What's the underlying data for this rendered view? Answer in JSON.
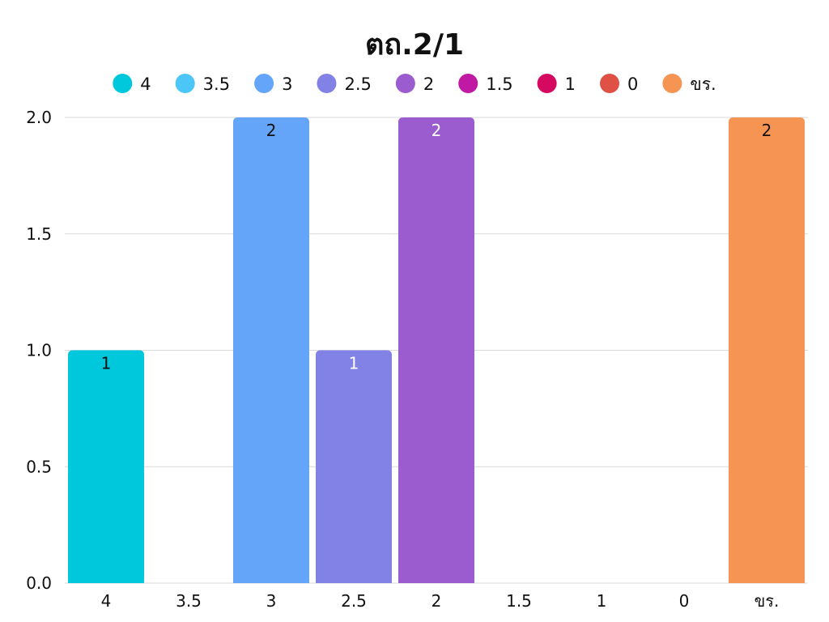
{
  "chart_data": {
    "type": "bar",
    "title": "ตถ.2/1",
    "xlabel": "",
    "ylabel": "",
    "categories": [
      "4",
      "3.5",
      "3",
      "2.5",
      "2",
      "1.5",
      "1",
      "0",
      "ขร."
    ],
    "values": [
      1,
      0,
      2,
      1,
      2,
      0,
      0,
      0,
      2
    ],
    "data_labels": [
      "1",
      "",
      "2",
      "1",
      "2",
      "",
      "",
      "",
      "2"
    ],
    "colors": [
      "#00c8dc",
      "#4cc6f7",
      "#64a5fa",
      "#8181e6",
      "#9a5ccf",
      "#c01aa5",
      "#d4095f",
      "#df5145",
      "#f69553"
    ],
    "label_colors": [
      "#111111",
      "#111111",
      "#111111",
      "#ffffff",
      "#ffffff",
      "#111111",
      "#111111",
      "#111111",
      "#111111"
    ],
    "ylim": [
      0,
      2
    ],
    "yticks": [
      "0.0",
      "0.5",
      "1.0",
      "1.5",
      "2.0"
    ],
    "ytick_values": [
      0,
      0.5,
      1,
      1.5,
      2
    ],
    "grid": true,
    "legend_position": "top-center",
    "legend": [
      "4",
      "3.5",
      "3",
      "2.5",
      "2",
      "1.5",
      "1",
      "0",
      "ขร."
    ]
  }
}
